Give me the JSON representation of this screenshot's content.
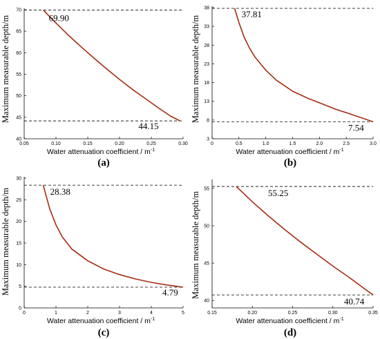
{
  "chart_data": [
    {
      "panel": "(a)",
      "type": "line",
      "x": [
        0.08,
        0.1,
        0.12,
        0.14,
        0.16,
        0.18,
        0.2,
        0.22,
        0.24,
        0.26,
        0.28,
        0.295
      ],
      "y": [
        69.9,
        66.9,
        64.0,
        61.3,
        58.7,
        56.2,
        53.8,
        51.5,
        49.4,
        47.3,
        45.3,
        44.15
      ],
      "xlim": [
        0.05,
        0.3
      ],
      "ylim": [
        40,
        70
      ],
      "xticks": [
        "0.05",
        "0.10",
        "0.15",
        "0.20",
        "0.25",
        "0.30"
      ],
      "yticks": [
        "40",
        "45",
        "50",
        "55",
        "60",
        "65",
        "70"
      ],
      "xlabel": "Water  attenuation coefficient /  m",
      "xlabel_sup": "-1",
      "ylabel": "Maximum measurable depth/m",
      "hlines": [
        69.9,
        44.15
      ],
      "annotations": [
        "69.90",
        "44.15"
      ],
      "color": "#a52a0f"
    },
    {
      "panel": "(b)",
      "type": "line",
      "x": [
        0.42,
        0.5,
        0.6,
        0.7,
        0.8,
        1.0,
        1.2,
        1.5,
        1.8,
        2.0,
        2.3,
        2.6,
        3.0
      ],
      "y": [
        37.81,
        34.0,
        30.0,
        27.1,
        24.8,
        21.3,
        18.6,
        15.7,
        13.7,
        12.6,
        10.9,
        9.5,
        7.54
      ],
      "xlim": [
        0,
        3.0
      ],
      "ylim": [
        3,
        38
      ],
      "xticks": [
        "0",
        "0.5",
        "1.0",
        "1.5",
        "2.0",
        "2.5",
        "3.0"
      ],
      "yticks": [
        "3",
        "8",
        "13",
        "18",
        "23",
        "28",
        "33",
        "38"
      ],
      "xlabel": "Water  attenuation coefficient /  m",
      "xlabel_sup": "-1",
      "ylabel": "Maximum measurable depth/m",
      "hlines": [
        37.81,
        7.54
      ],
      "annotations": [
        "37.81",
        "7.54"
      ],
      "color": "#a52a0f"
    },
    {
      "panel": "(c)",
      "type": "line",
      "x": [
        0.6,
        0.8,
        1.0,
        1.2,
        1.5,
        2.0,
        2.5,
        3.0,
        3.5,
        4.0,
        4.5,
        5.0
      ],
      "y": [
        28.38,
        23.0,
        19.2,
        16.4,
        13.6,
        10.9,
        9.0,
        7.7,
        6.7,
        5.9,
        5.3,
        4.79
      ],
      "xlim": [
        0,
        5
      ],
      "ylim": [
        0,
        30
      ],
      "xticks": [
        "0",
        "1",
        "2",
        "3",
        "4",
        "5"
      ],
      "yticks": [
        "0",
        "5",
        "10",
        "15",
        "20",
        "25",
        "30"
      ],
      "xlabel": "Water  attenuation coefficient /  m",
      "xlabel_sup": "-1",
      "ylabel": "Maximum measurable depth/m",
      "hlines": [
        28.38,
        4.79
      ],
      "annotations": [
        "28.38",
        "4.79"
      ],
      "color": "#a52a0f"
    },
    {
      "panel": "(d)",
      "type": "line",
      "x": [
        0.18,
        0.2,
        0.22,
        0.24,
        0.26,
        0.28,
        0.3,
        0.32,
        0.34,
        0.35
      ],
      "y": [
        55.25,
        53.2,
        51.3,
        49.5,
        47.8,
        46.2,
        44.6,
        43.1,
        41.5,
        40.74
      ],
      "xlim": [
        0.15,
        0.35
      ],
      "ylim": [
        39,
        56
      ],
      "xticks": [
        "0.15",
        "0.20",
        "0.25",
        "0.30",
        "0.35"
      ],
      "yticks": [
        "40",
        "45",
        "50",
        "55"
      ],
      "xlabel": "Water  attenuation coefficient /  m",
      "xlabel_sup": "-1",
      "ylabel": "Maximum measurable depth/m",
      "hlines": [
        55.25,
        40.74
      ],
      "annotations": [
        "55.25",
        "40.74"
      ],
      "color": "#a52a0f"
    }
  ]
}
